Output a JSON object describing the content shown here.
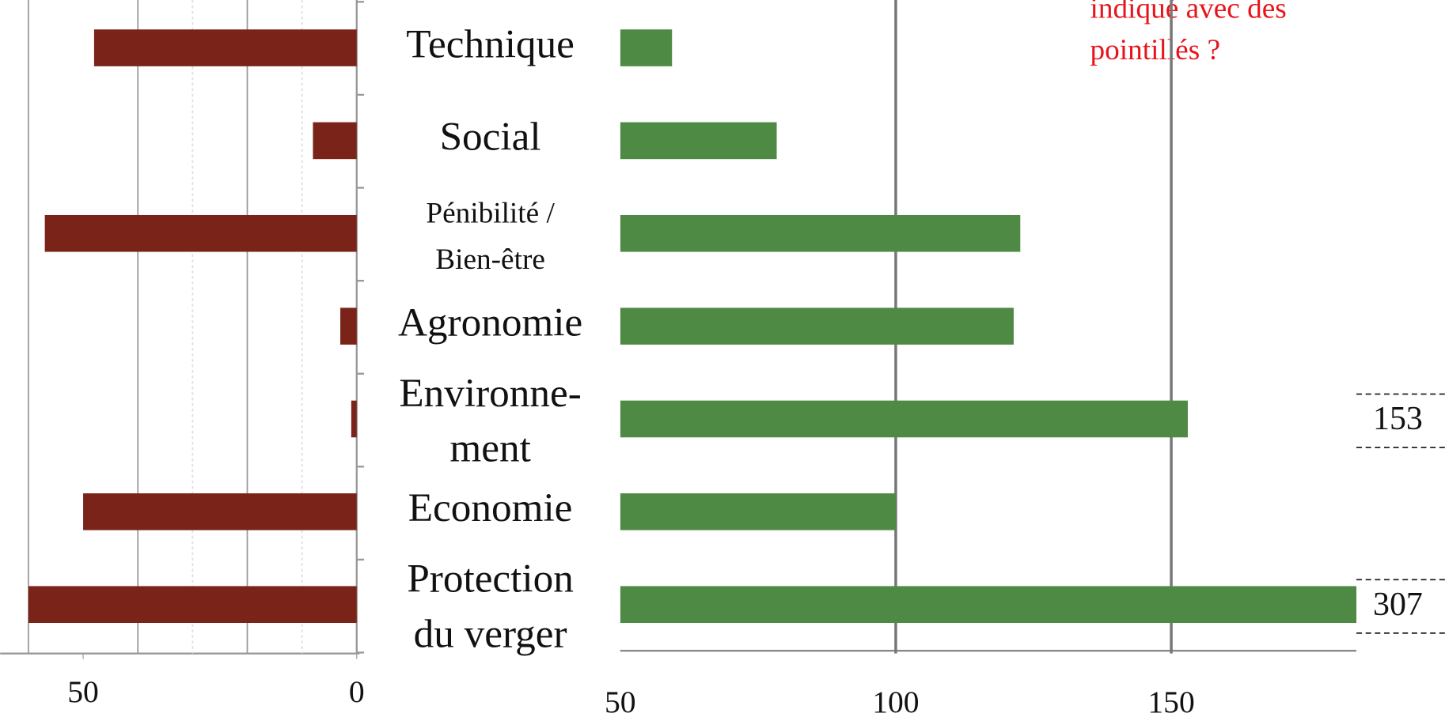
{
  "chart_data": [
    {
      "type": "bar",
      "orientation": "horizontal",
      "reversed": true,
      "categories": [
        [
          "Technique"
        ],
        [
          "Social"
        ],
        [
          "Pénibilité /",
          "Bien-être"
        ],
        [
          "Agronomie"
        ],
        [
          "Environne-",
          "ment"
        ],
        [
          "Economie"
        ],
        [
          "Protection",
          "du verger"
        ]
      ],
      "values": [
        48,
        8,
        57,
        3,
        1,
        50,
        60
      ],
      "color": "#7a2318",
      "xlim": [
        0,
        65
      ],
      "xticks": [
        0,
        50
      ],
      "grid": {
        "major": [
          20,
          40,
          60
        ],
        "minor": [
          10,
          30
        ]
      }
    },
    {
      "type": "bar",
      "orientation": "horizontal",
      "values": [
        59.4,
        78.4,
        122.6,
        121.4,
        153,
        100,
        307
      ],
      "value_labels": [
        null,
        null,
        null,
        null,
        "153",
        null,
        "307"
      ],
      "color": "#4e8a43",
      "xlim": [
        50,
        183.6
      ],
      "xticks": [
        50,
        100,
        150
      ],
      "grid": true
    }
  ],
  "annotation": [
    "indiqué avec des",
    "pointillés ?"
  ]
}
